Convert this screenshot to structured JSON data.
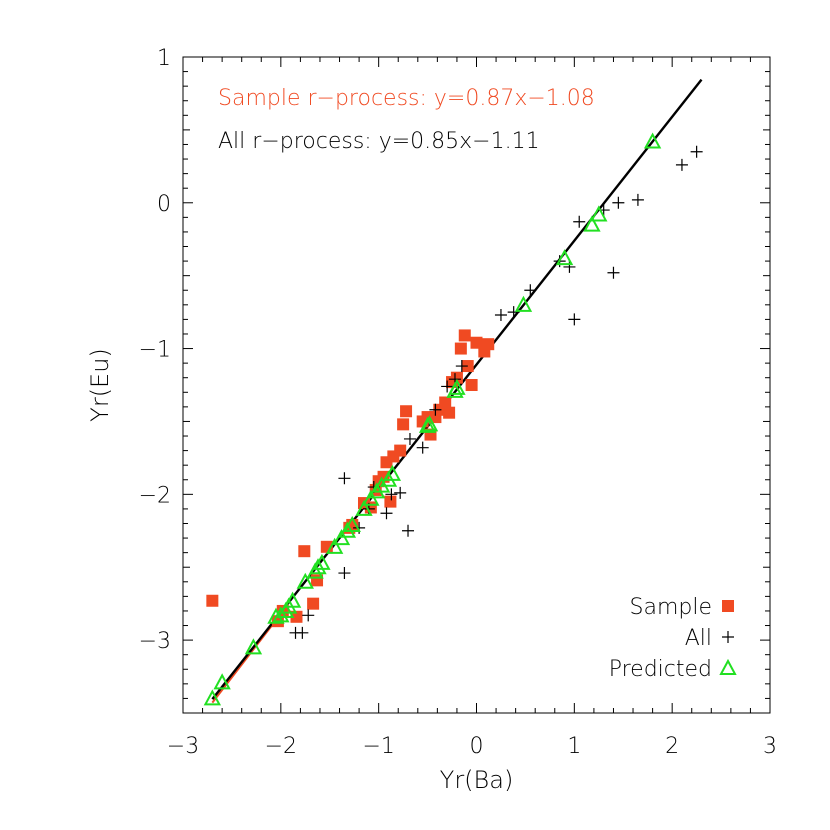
{
  "chart_data": {
    "type": "scatter",
    "xlabel": "Yr(Ba)",
    "ylabel": "Yr(Eu)",
    "xlim": [
      -3,
      3
    ],
    "ylim": [
      -3.5,
      1
    ],
    "x_ticks": [
      -3,
      -2,
      -1,
      0,
      1,
      2,
      3
    ],
    "y_ticks": [
      -3,
      -2,
      -1,
      0,
      1
    ],
    "x_tick_labels": [
      "−3",
      "−2",
      "−1",
      "0",
      "1",
      "2",
      "3"
    ],
    "y_tick_labels": [
      "−3",
      "−2",
      "−1",
      "0",
      "1"
    ],
    "grid": false,
    "legend_position": "bottom-right",
    "annotations": [
      {
        "text": "Sample r−process: y=0.87x−1.08",
        "color": "#f04a22"
      },
      {
        "text": "All r−process: y=0.85x−1.11",
        "color": "#000000"
      }
    ],
    "fits": [
      {
        "slope": 0.87,
        "intercept": -1.08,
        "x_range": [
          -2.7,
          -2.0
        ],
        "color": "#f04a22"
      },
      {
        "slope": 0.85,
        "intercept": -1.11,
        "x_range": [
          -2.7,
          2.3
        ],
        "color": "#000000"
      }
    ],
    "series": [
      {
        "name": "Sample",
        "marker": "square",
        "color": "#f04a22",
        "points": [
          [
            -2.7,
            -2.73
          ],
          [
            -2.03,
            -2.87
          ],
          [
            -1.98,
            -2.8
          ],
          [
            -1.84,
            -2.84
          ],
          [
            -1.76,
            -2.39
          ],
          [
            -1.67,
            -2.75
          ],
          [
            -1.63,
            -2.59
          ],
          [
            -1.53,
            -2.36
          ],
          [
            -1.3,
            -2.23
          ],
          [
            -1.27,
            -2.21
          ],
          [
            -1.15,
            -2.06
          ],
          [
            -1.08,
            -2.09
          ],
          [
            -1.03,
            -1.97
          ],
          [
            -1.0,
            -1.91
          ],
          [
            -0.95,
            -1.88
          ],
          [
            -0.92,
            -1.78
          ],
          [
            -0.88,
            -2.05
          ],
          [
            -0.85,
            -1.74
          ],
          [
            -0.78,
            -1.7
          ],
          [
            -0.75,
            -1.52
          ],
          [
            -0.72,
            -1.43
          ],
          [
            -0.55,
            -1.5
          ],
          [
            -0.5,
            -1.47
          ],
          [
            -0.47,
            -1.59
          ],
          [
            -0.42,
            -1.47
          ],
          [
            -0.38,
            -1.42
          ],
          [
            -0.32,
            -1.37
          ],
          [
            -0.28,
            -1.44
          ],
          [
            -0.25,
            -1.23
          ],
          [
            -0.2,
            -1.2
          ],
          [
            -0.16,
            -1.0
          ],
          [
            -0.12,
            -0.91
          ],
          [
            -0.09,
            -1.12
          ],
          [
            -0.05,
            -1.25
          ],
          [
            0.0,
            -0.96
          ],
          [
            0.08,
            -1.02
          ],
          [
            0.12,
            -0.97
          ]
        ]
      },
      {
        "name": "All",
        "marker": "plus",
        "color": "#000000",
        "points": [
          [
            -1.85,
            -2.95
          ],
          [
            -1.78,
            -2.95
          ],
          [
            -1.72,
            -2.83
          ],
          [
            -1.35,
            -1.89
          ],
          [
            -1.35,
            -2.54
          ],
          [
            -1.2,
            -2.23
          ],
          [
            -1.1,
            -2.1
          ],
          [
            -1.05,
            -1.95
          ],
          [
            -0.92,
            -2.13
          ],
          [
            -0.87,
            -2.0
          ],
          [
            -0.78,
            -1.99
          ],
          [
            -0.7,
            -2.25
          ],
          [
            -0.68,
            -1.62
          ],
          [
            -0.55,
            -1.68
          ],
          [
            -0.42,
            -1.42
          ],
          [
            -0.3,
            -1.26
          ],
          [
            -0.22,
            -1.21
          ],
          [
            -0.15,
            -1.12
          ],
          [
            0.25,
            -0.77
          ],
          [
            0.38,
            -0.75
          ],
          [
            0.55,
            -0.6
          ],
          [
            0.85,
            -0.4
          ],
          [
            0.95,
            -0.44
          ],
          [
            1.0,
            -0.8
          ],
          [
            1.05,
            -0.13
          ],
          [
            1.3,
            -0.05
          ],
          [
            1.4,
            -0.48
          ],
          [
            1.45,
            0.0
          ],
          [
            1.65,
            0.02
          ],
          [
            2.1,
            0.26
          ],
          [
            2.25,
            0.35
          ]
        ]
      },
      {
        "name": "Predicted",
        "marker": "triangle",
        "color": "#22e022",
        "points": [
          [
            -2.7,
            -3.4
          ],
          [
            -2.6,
            -3.29
          ],
          [
            -2.28,
            -3.05
          ],
          [
            -2.05,
            -2.84
          ],
          [
            -2.0,
            -2.83
          ],
          [
            -1.95,
            -2.8
          ],
          [
            -1.92,
            -2.77
          ],
          [
            -1.88,
            -2.73
          ],
          [
            -1.75,
            -2.6
          ],
          [
            -1.65,
            -2.53
          ],
          [
            -1.62,
            -2.5
          ],
          [
            -1.58,
            -2.47
          ],
          [
            -1.45,
            -2.36
          ],
          [
            -1.38,
            -2.3
          ],
          [
            -1.32,
            -2.25
          ],
          [
            -1.27,
            -2.21
          ],
          [
            -1.15,
            -2.1
          ],
          [
            -1.08,
            -2.03
          ],
          [
            -1.02,
            -1.98
          ],
          [
            -0.97,
            -1.94
          ],
          [
            -0.9,
            -1.9
          ],
          [
            -0.86,
            -1.86
          ],
          [
            -0.5,
            -1.53
          ],
          [
            -0.48,
            -1.52
          ],
          [
            -0.22,
            -1.29
          ],
          [
            -0.2,
            -1.27
          ],
          [
            0.48,
            -0.7
          ],
          [
            0.9,
            -0.38
          ],
          [
            1.18,
            -0.15
          ],
          [
            1.25,
            -0.08
          ],
          [
            1.8,
            0.42
          ]
        ]
      }
    ]
  }
}
